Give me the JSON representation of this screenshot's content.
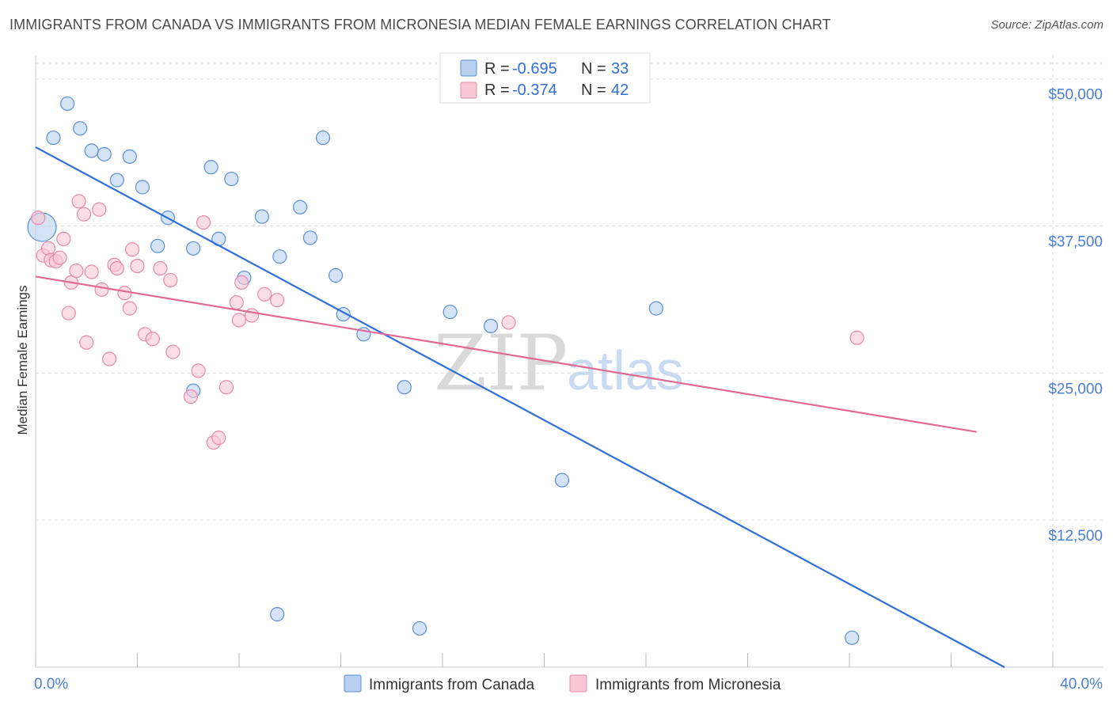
{
  "title": "IMMIGRANTS FROM CANADA VS IMMIGRANTS FROM MICRONESIA MEDIAN FEMALE EARNINGS CORRELATION CHART",
  "source": "Source: ZipAtlas.com",
  "watermark": {
    "zip": "ZIP",
    "atlas": "atlas"
  },
  "colors": {
    "blue_fill": "#b8d0f0",
    "blue_stroke": "#5a8fd8",
    "blue_line": "#2f6fd6",
    "pink_fill": "#f8c6d5",
    "pink_stroke": "#e68aa8",
    "pink_line": "#e06a93",
    "grid": "#dddddd",
    "tick_text": "#4a7fd4"
  },
  "legend": {
    "rows": [
      {
        "r_label": "R = ",
        "r_value": "-0.695",
        "n_label": "N = ",
        "n_value": "33",
        "color": "blue"
      },
      {
        "r_label": "R = ",
        "r_value": "-0.374",
        "n_label": "N = ",
        "n_value": "42",
        "color": "pink"
      }
    ]
  },
  "chart_data": {
    "type": "scatter",
    "title": "IMMIGRANTS FROM CANADA VS IMMIGRANTS FROM MICRONESIA MEDIAN FEMALE EARNINGS CORRELATION CHART",
    "xlabel": "",
    "ylabel": "Median Female Earnings",
    "xlim": [
      0,
      40
    ],
    "ylim": [
      0,
      52000
    ],
    "x_tick_labels": [
      "0.0%",
      "40.0%"
    ],
    "y_ticks": [
      12500,
      25000,
      37500,
      50000
    ],
    "y_tick_labels": [
      "$12,500",
      "$25,000",
      "$37,500",
      "$50,000"
    ],
    "grid": true,
    "legend_position": "top-center",
    "series": [
      {
        "name": "Immigrants from Canada",
        "color": "blue",
        "trend": {
          "x": [
            0,
            38.1
          ],
          "y": [
            44200,
            0
          ]
        },
        "points": [
          {
            "x": 0.25,
            "y": 37400,
            "big": true
          },
          {
            "x": 0.7,
            "y": 45000
          },
          {
            "x": 1.25,
            "y": 47900
          },
          {
            "x": 1.75,
            "y": 45800
          },
          {
            "x": 2.2,
            "y": 43900
          },
          {
            "x": 2.7,
            "y": 43600
          },
          {
            "x": 3.2,
            "y": 41400
          },
          {
            "x": 3.7,
            "y": 43400
          },
          {
            "x": 4.2,
            "y": 40800
          },
          {
            "x": 5.2,
            "y": 38200
          },
          {
            "x": 4.8,
            "y": 35800
          },
          {
            "x": 6.2,
            "y": 23500
          },
          {
            "x": 6.2,
            "y": 35600
          },
          {
            "x": 6.9,
            "y": 42500
          },
          {
            "x": 7.2,
            "y": 36400
          },
          {
            "x": 7.7,
            "y": 41500
          },
          {
            "x": 8.2,
            "y": 33100
          },
          {
            "x": 8.9,
            "y": 38300
          },
          {
            "x": 9.5,
            "y": 4500
          },
          {
            "x": 9.6,
            "y": 34900
          },
          {
            "x": 10.4,
            "y": 39100
          },
          {
            "x": 10.8,
            "y": 36500
          },
          {
            "x": 11.3,
            "y": 45000
          },
          {
            "x": 11.8,
            "y": 33300
          },
          {
            "x": 12.1,
            "y": 30000
          },
          {
            "x": 12.9,
            "y": 28300
          },
          {
            "x": 14.5,
            "y": 23800
          },
          {
            "x": 15.1,
            "y": 3300
          },
          {
            "x": 16.3,
            "y": 30200
          },
          {
            "x": 17.9,
            "y": 29000
          },
          {
            "x": 20.7,
            "y": 15900
          },
          {
            "x": 24.4,
            "y": 30500
          },
          {
            "x": 32.1,
            "y": 2500
          }
        ]
      },
      {
        "name": "Immigrants from Micronesia",
        "color": "pink",
        "trend": {
          "x": [
            0,
            37.0
          ],
          "y": [
            33200,
            20000
          ]
        },
        "points": [
          {
            "x": 0.1,
            "y": 38200
          },
          {
            "x": 0.3,
            "y": 35000
          },
          {
            "x": 0.5,
            "y": 35600
          },
          {
            "x": 0.6,
            "y": 34600
          },
          {
            "x": 0.8,
            "y": 34500
          },
          {
            "x": 0.95,
            "y": 34800
          },
          {
            "x": 1.1,
            "y": 36400
          },
          {
            "x": 1.3,
            "y": 30100
          },
          {
            "x": 1.4,
            "y": 32700
          },
          {
            "x": 1.6,
            "y": 33700
          },
          {
            "x": 1.7,
            "y": 39600
          },
          {
            "x": 1.9,
            "y": 38500
          },
          {
            "x": 2.0,
            "y": 27600
          },
          {
            "x": 2.2,
            "y": 33600
          },
          {
            "x": 2.6,
            "y": 32100
          },
          {
            "x": 2.5,
            "y": 38900
          },
          {
            "x": 2.9,
            "y": 26200
          },
          {
            "x": 3.1,
            "y": 34200
          },
          {
            "x": 3.2,
            "y": 33900
          },
          {
            "x": 3.5,
            "y": 31800
          },
          {
            "x": 3.7,
            "y": 30500
          },
          {
            "x": 3.8,
            "y": 35500
          },
          {
            "x": 4.0,
            "y": 34100
          },
          {
            "x": 4.3,
            "y": 28300
          },
          {
            "x": 4.6,
            "y": 27900
          },
          {
            "x": 4.9,
            "y": 33900
          },
          {
            "x": 5.3,
            "y": 32900
          },
          {
            "x": 5.4,
            "y": 26800
          },
          {
            "x": 6.1,
            "y": 23000
          },
          {
            "x": 6.4,
            "y": 25200
          },
          {
            "x": 6.6,
            "y": 37800
          },
          {
            "x": 7.0,
            "y": 19100
          },
          {
            "x": 7.2,
            "y": 19500
          },
          {
            "x": 7.5,
            "y": 23800
          },
          {
            "x": 7.9,
            "y": 31000
          },
          {
            "x": 8.0,
            "y": 29500
          },
          {
            "x": 8.1,
            "y": 32700
          },
          {
            "x": 8.5,
            "y": 29900
          },
          {
            "x": 9.0,
            "y": 31700
          },
          {
            "x": 9.5,
            "y": 31200
          },
          {
            "x": 18.6,
            "y": 29300
          },
          {
            "x": 32.3,
            "y": 28000
          }
        ]
      }
    ]
  }
}
